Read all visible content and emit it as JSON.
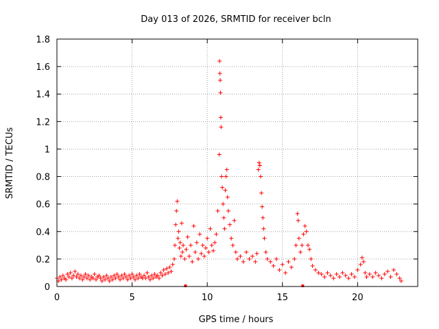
{
  "chart_data": {
    "type": "scatter",
    "title": "Day 013 of 2026, SRMTID for receiver bcln",
    "xlabel": "GPS time / hours",
    "ylabel": "SRMTID / TECUs",
    "xlim": [
      0,
      24
    ],
    "ylim": [
      0,
      1.8
    ],
    "xticks": [
      0,
      5,
      10,
      15,
      20
    ],
    "xtick_labels": [
      "0",
      "5",
      "10",
      "15",
      "20"
    ],
    "yticks": [
      0,
      0.2,
      0.4,
      0.6,
      0.8,
      1,
      1.2,
      1.4,
      1.6,
      1.8
    ],
    "ytick_labels": [
      "0",
      "0.2",
      "0.4",
      "0.6",
      "0.8",
      "1",
      "1.2",
      "1.4",
      "1.6",
      "1.8"
    ],
    "grid": true,
    "marker": "+",
    "series": [
      {
        "name": "SRMTID",
        "color": "#ff0000",
        "points": [
          [
            0.0,
            0.06
          ],
          [
            0.1,
            0.04
          ],
          [
            0.2,
            0.07
          ],
          [
            0.3,
            0.05
          ],
          [
            0.4,
            0.08
          ],
          [
            0.5,
            0.06
          ],
          [
            0.6,
            0.05
          ],
          [
            0.7,
            0.09
          ],
          [
            0.8,
            0.07
          ],
          [
            0.9,
            0.1
          ],
          [
            1.0,
            0.06
          ],
          [
            1.1,
            0.08
          ],
          [
            1.2,
            0.11
          ],
          [
            1.3,
            0.07
          ],
          [
            1.4,
            0.09
          ],
          [
            1.5,
            0.06
          ],
          [
            1.6,
            0.08
          ],
          [
            1.7,
            0.05
          ],
          [
            1.8,
            0.07
          ],
          [
            1.9,
            0.09
          ],
          [
            2.0,
            0.06
          ],
          [
            2.1,
            0.08
          ],
          [
            2.2,
            0.05
          ],
          [
            2.3,
            0.07
          ],
          [
            2.4,
            0.06
          ],
          [
            2.5,
            0.09
          ],
          [
            2.6,
            0.05
          ],
          [
            2.7,
            0.07
          ],
          [
            2.8,
            0.08
          ],
          [
            2.9,
            0.06
          ],
          [
            3.0,
            0.04
          ],
          [
            3.1,
            0.07
          ],
          [
            3.2,
            0.05
          ],
          [
            3.3,
            0.08
          ],
          [
            3.4,
            0.06
          ],
          [
            3.5,
            0.04
          ],
          [
            3.6,
            0.07
          ],
          [
            3.7,
            0.05
          ],
          [
            3.8,
            0.08
          ],
          [
            3.9,
            0.06
          ],
          [
            4.0,
            0.09
          ],
          [
            4.1,
            0.07
          ],
          [
            4.2,
            0.05
          ],
          [
            4.3,
            0.08
          ],
          [
            4.4,
            0.06
          ],
          [
            4.5,
            0.09
          ],
          [
            4.6,
            0.07
          ],
          [
            4.7,
            0.05
          ],
          [
            4.8,
            0.08
          ],
          [
            4.9,
            0.06
          ],
          [
            5.0,
            0.09
          ],
          [
            5.1,
            0.07
          ],
          [
            5.2,
            0.05
          ],
          [
            5.3,
            0.08
          ],
          [
            5.4,
            0.06
          ],
          [
            5.5,
            0.09
          ],
          [
            5.6,
            0.07
          ],
          [
            5.7,
            0.06
          ],
          [
            5.8,
            0.08
          ],
          [
            5.9,
            0.06
          ],
          [
            6.0,
            0.1
          ],
          [
            6.1,
            0.07
          ],
          [
            6.2,
            0.05
          ],
          [
            6.3,
            0.08
          ],
          [
            6.4,
            0.06
          ],
          [
            6.5,
            0.09
          ],
          [
            6.6,
            0.07
          ],
          [
            6.7,
            0.08
          ],
          [
            6.8,
            0.06
          ],
          [
            6.9,
            0.1
          ],
          [
            7.0,
            0.08
          ],
          [
            7.1,
            0.12
          ],
          [
            7.2,
            0.09
          ],
          [
            7.3,
            0.13
          ],
          [
            7.4,
            0.1
          ],
          [
            7.5,
            0.14
          ],
          [
            7.6,
            0.11
          ],
          [
            7.7,
            0.16
          ],
          [
            7.8,
            0.2
          ],
          [
            7.85,
            0.3
          ],
          [
            7.9,
            0.45
          ],
          [
            7.95,
            0.55
          ],
          [
            8.0,
            0.62
          ],
          [
            8.05,
            0.35
          ],
          [
            8.1,
            0.4
          ],
          [
            8.15,
            0.28
          ],
          [
            8.2,
            0.32
          ],
          [
            8.25,
            0.22
          ],
          [
            8.3,
            0.46
          ],
          [
            8.35,
            0.25
          ],
          [
            8.4,
            0.3
          ],
          [
            8.5,
            0.2
          ],
          [
            8.6,
            0.27
          ],
          [
            8.7,
            0.36
          ],
          [
            8.8,
            0.22
          ],
          [
            8.9,
            0.3
          ],
          [
            9.0,
            0.18
          ],
          [
            9.1,
            0.44
          ],
          [
            9.2,
            0.25
          ],
          [
            9.3,
            0.32
          ],
          [
            9.4,
            0.2
          ],
          [
            9.5,
            0.38
          ],
          [
            9.6,
            0.24
          ],
          [
            9.7,
            0.3
          ],
          [
            9.8,
            0.22
          ],
          [
            9.9,
            0.28
          ],
          [
            10.0,
            0.35
          ],
          [
            10.1,
            0.25
          ],
          [
            10.2,
            0.42
          ],
          [
            10.3,
            0.3
          ],
          [
            10.4,
            0.26
          ],
          [
            10.5,
            0.32
          ],
          [
            10.6,
            0.38
          ],
          [
            10.7,
            0.55
          ],
          [
            10.8,
            0.96
          ],
          [
            10.82,
            1.64
          ],
          [
            10.84,
            1.55
          ],
          [
            10.86,
            1.5
          ],
          [
            10.88,
            1.41
          ],
          [
            10.9,
            1.23
          ],
          [
            10.92,
            1.16
          ],
          [
            10.95,
            0.8
          ],
          [
            11.0,
            0.72
          ],
          [
            11.05,
            0.6
          ],
          [
            11.1,
            0.5
          ],
          [
            11.15,
            0.42
          ],
          [
            11.2,
            0.7
          ],
          [
            11.25,
            0.8
          ],
          [
            11.3,
            0.85
          ],
          [
            11.35,
            0.65
          ],
          [
            11.4,
            0.55
          ],
          [
            11.5,
            0.45
          ],
          [
            11.6,
            0.35
          ],
          [
            11.7,
            0.3
          ],
          [
            11.8,
            0.48
          ],
          [
            11.9,
            0.25
          ],
          [
            12.0,
            0.2
          ],
          [
            12.2,
            0.22
          ],
          [
            12.4,
            0.18
          ],
          [
            12.6,
            0.25
          ],
          [
            12.8,
            0.2
          ],
          [
            13.0,
            0.22
          ],
          [
            13.2,
            0.18
          ],
          [
            13.3,
            0.24
          ],
          [
            13.4,
            0.85
          ],
          [
            13.45,
            0.9
          ],
          [
            13.5,
            0.88
          ],
          [
            13.55,
            0.8
          ],
          [
            13.6,
            0.68
          ],
          [
            13.65,
            0.58
          ],
          [
            13.7,
            0.5
          ],
          [
            13.75,
            0.42
          ],
          [
            13.8,
            0.35
          ],
          [
            13.9,
            0.25
          ],
          [
            14.0,
            0.2
          ],
          [
            14.2,
            0.18
          ],
          [
            14.4,
            0.15
          ],
          [
            14.6,
            0.2
          ],
          [
            14.8,
            0.12
          ],
          [
            15.0,
            0.16
          ],
          [
            15.2,
            0.1
          ],
          [
            15.4,
            0.18
          ],
          [
            15.6,
            0.14
          ],
          [
            15.8,
            0.2
          ],
          [
            15.9,
            0.3
          ],
          [
            16.0,
            0.53
          ],
          [
            16.05,
            0.48
          ],
          [
            16.1,
            0.35
          ],
          [
            16.2,
            0.25
          ],
          [
            16.3,
            0.3
          ],
          [
            16.4,
            0.38
          ],
          [
            16.5,
            0.44
          ],
          [
            16.6,
            0.4
          ],
          [
            16.7,
            0.3
          ],
          [
            16.8,
            0.27
          ],
          [
            16.9,
            0.2
          ],
          [
            17.0,
            0.15
          ],
          [
            17.2,
            0.12
          ],
          [
            17.4,
            0.1
          ],
          [
            17.6,
            0.09
          ],
          [
            17.8,
            0.07
          ],
          [
            18.0,
            0.1
          ],
          [
            18.2,
            0.08
          ],
          [
            18.4,
            0.06
          ],
          [
            18.6,
            0.09
          ],
          [
            18.8,
            0.07
          ],
          [
            19.0,
            0.1
          ],
          [
            19.2,
            0.08
          ],
          [
            19.4,
            0.06
          ],
          [
            19.6,
            0.09
          ],
          [
            19.8,
            0.07
          ],
          [
            20.0,
            0.12
          ],
          [
            20.2,
            0.16
          ],
          [
            20.3,
            0.21
          ],
          [
            20.4,
            0.18
          ],
          [
            20.5,
            0.1
          ],
          [
            20.6,
            0.07
          ],
          [
            20.8,
            0.09
          ],
          [
            21.0,
            0.07
          ],
          [
            21.2,
            0.1
          ],
          [
            21.4,
            0.08
          ],
          [
            21.6,
            0.06
          ],
          [
            21.8,
            0.09
          ],
          [
            22.0,
            0.11
          ],
          [
            22.2,
            0.07
          ],
          [
            22.4,
            0.12
          ],
          [
            22.6,
            0.09
          ],
          [
            22.8,
            0.06
          ],
          [
            22.9,
            0.04
          ]
        ]
      }
    ],
    "zero_markers": [
      8.55,
      16.35
    ]
  }
}
